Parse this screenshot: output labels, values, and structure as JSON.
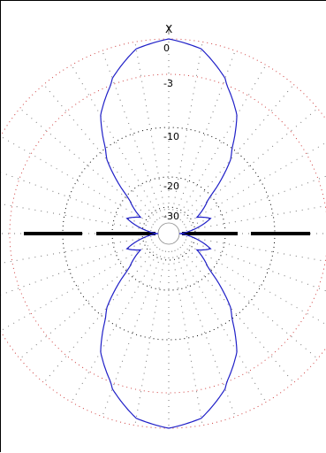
{
  "chart_data": {
    "type": "polar",
    "scale": "dB",
    "axis_label": "X",
    "ring_labels": [
      "0",
      "-3",
      "-10",
      "-20",
      "-30"
    ],
    "ring_levels_db": [
      0,
      -3,
      -10,
      -20,
      -30
    ],
    "grid": true,
    "pattern_line_color": "#2020c8",
    "axis_line_color": "#000000",
    "outer_grid_color": "#d04040",
    "inner_grid_color": "#000000",
    "radial_step_deg": 10,
    "series": [
      {
        "description": "figure-eight radiation pattern with main lobes toward 0 and 180 deg",
        "theta_deg": [
          0,
          10,
          20,
          30,
          40,
          50,
          60,
          70,
          80,
          90
        ],
        "gain_db": [
          0,
          -0.6,
          -2.5,
          -6,
          -12,
          -22,
          -28,
          -24,
          -30,
          -40
        ]
      }
    ]
  }
}
